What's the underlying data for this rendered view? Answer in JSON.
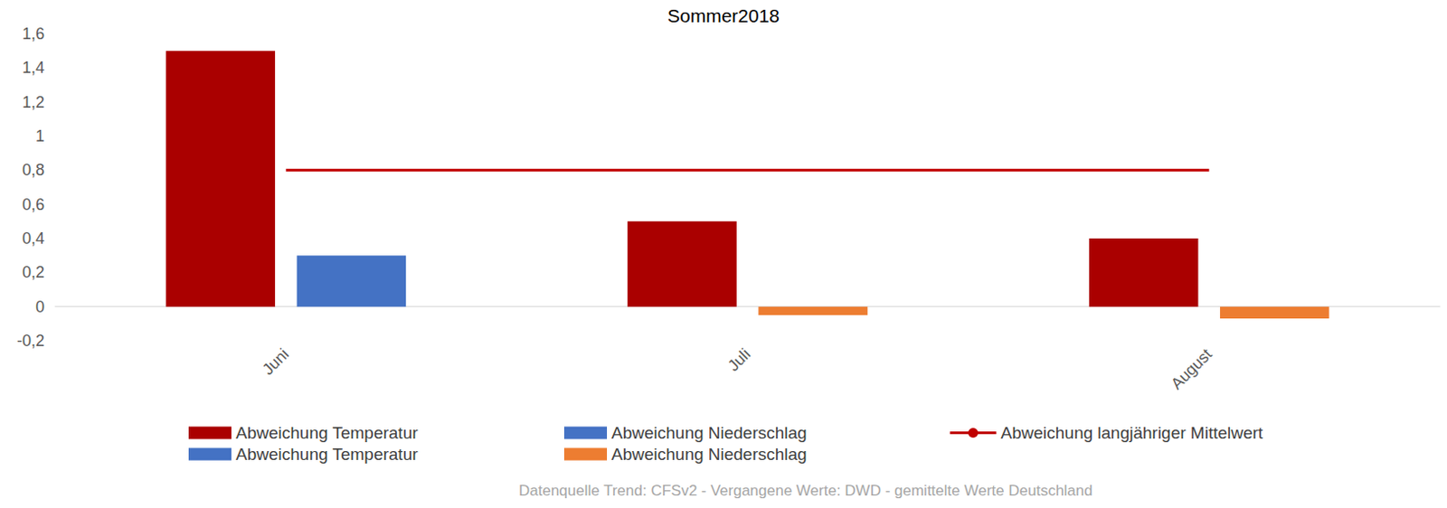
{
  "chart_data": {
    "type": "bar",
    "title": "Sommer2018",
    "source": "Datenquelle Trend: CFSv2 - Vergangene Werte: DWD - gemittelte Werte Deutschland",
    "categories": [
      "Juni",
      "Juli",
      "August"
    ],
    "ylim": [
      -0.2,
      1.6
    ],
    "yticks": [
      {
        "value": -0.2,
        "label": "-0,2"
      },
      0,
      {
        "value": 0.2,
        "label": "0,2"
      },
      {
        "value": 0.4,
        "label": "0,4"
      },
      {
        "value": 0.6,
        "label": "0,6"
      },
      {
        "value": 0.8,
        "label": "0,8"
      },
      1,
      {
        "value": 1.2,
        "label": "1,2"
      },
      {
        "value": 1.4,
        "label": "1,4"
      },
      {
        "value": 1.6,
        "label": "1,6"
      }
    ],
    "grid": false,
    "legend": "bottom",
    "series": [
      {
        "name": "Abweichung Temperatur",
        "color": "#AA0000",
        "values": [
          1.5,
          0.5,
          0.4
        ]
      },
      {
        "name": "Abweichung Niederschlag",
        "color": "#4472C4",
        "values": [
          0.3,
          null,
          null
        ]
      },
      {
        "name": "Abweichung langjähriger Mittelwert",
        "type": "line",
        "color": "#C00000",
        "values": [
          0.8,
          0.8,
          0.8
        ]
      },
      {
        "name": "Abweichung Temperatur",
        "color": "#4472C4",
        "values": [
          null,
          null,
          null
        ]
      },
      {
        "name": "Abweichung Niederschlag",
        "color": "#ED7D31",
        "values": [
          null,
          -0.05,
          -0.07
        ]
      }
    ]
  }
}
